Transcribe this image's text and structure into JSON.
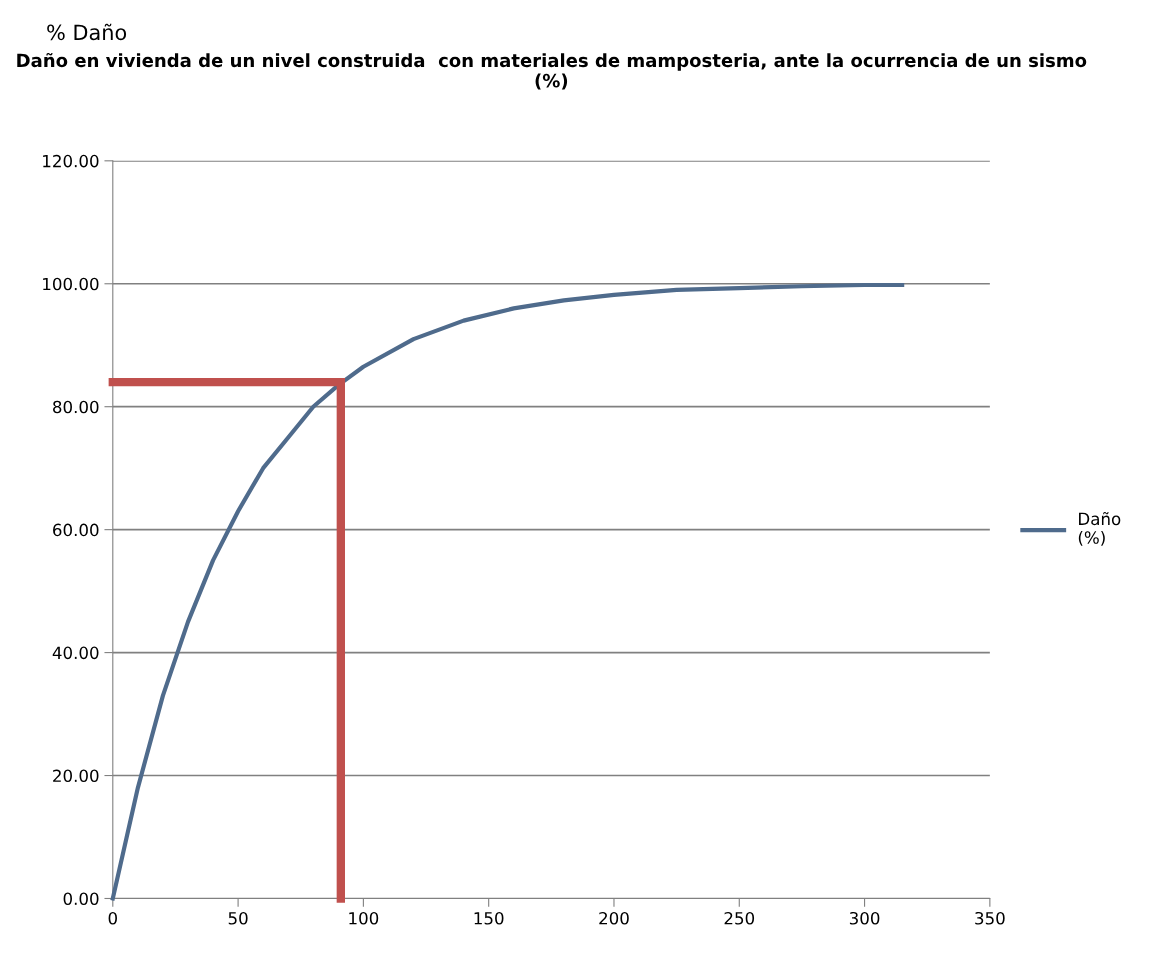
{
  "chart_data": {
    "type": "line",
    "title": "Daño en vivienda de un nivel construida  con materiales de mamposteria, ante la ocurrencia de un sismo\n(%)",
    "annotations": [
      "% Daño"
    ],
    "x": [
      0,
      10,
      20,
      30,
      40,
      50,
      60,
      70,
      80,
      90,
      100,
      120,
      140,
      160,
      180,
      200,
      225,
      250,
      275,
      300,
      315
    ],
    "series": [
      {
        "name": "Daño\n(%)",
        "color": "#4f6b8c",
        "values": [
          0,
          18,
          33,
          45,
          55,
          63,
          70,
          75,
          80,
          83.5,
          86.5,
          91,
          94,
          96,
          97.3,
          98.2,
          99,
          99.3,
          99.6,
          99.8,
          99.8
        ]
      }
    ],
    "ref_lines": [
      {
        "axis": "x",
        "value": 91,
        "color": "#c0504d",
        "line_style": "solid"
      },
      {
        "axis": "y",
        "value": 84,
        "color": "#c0504d",
        "line_style": "solid"
      }
    ],
    "xlim": [
      0,
      350
    ],
    "xticks": [
      0,
      50,
      100,
      150,
      200,
      250,
      300,
      350
    ],
    "ylim": [
      0,
      120
    ],
    "yticks": [
      {
        "value": 0,
        "label": "0.00"
      },
      {
        "value": 20,
        "label": "20.00"
      },
      {
        "value": 40,
        "label": "40.00"
      },
      {
        "value": 60,
        "label": "60.00"
      },
      {
        "value": 80,
        "label": "80.00"
      },
      {
        "value": 100,
        "label": "100.00"
      },
      {
        "value": 120,
        "label": "120.00"
      }
    ],
    "grid": "y",
    "legend": "right",
    "marker": "none",
    "line_style": "solid"
  }
}
